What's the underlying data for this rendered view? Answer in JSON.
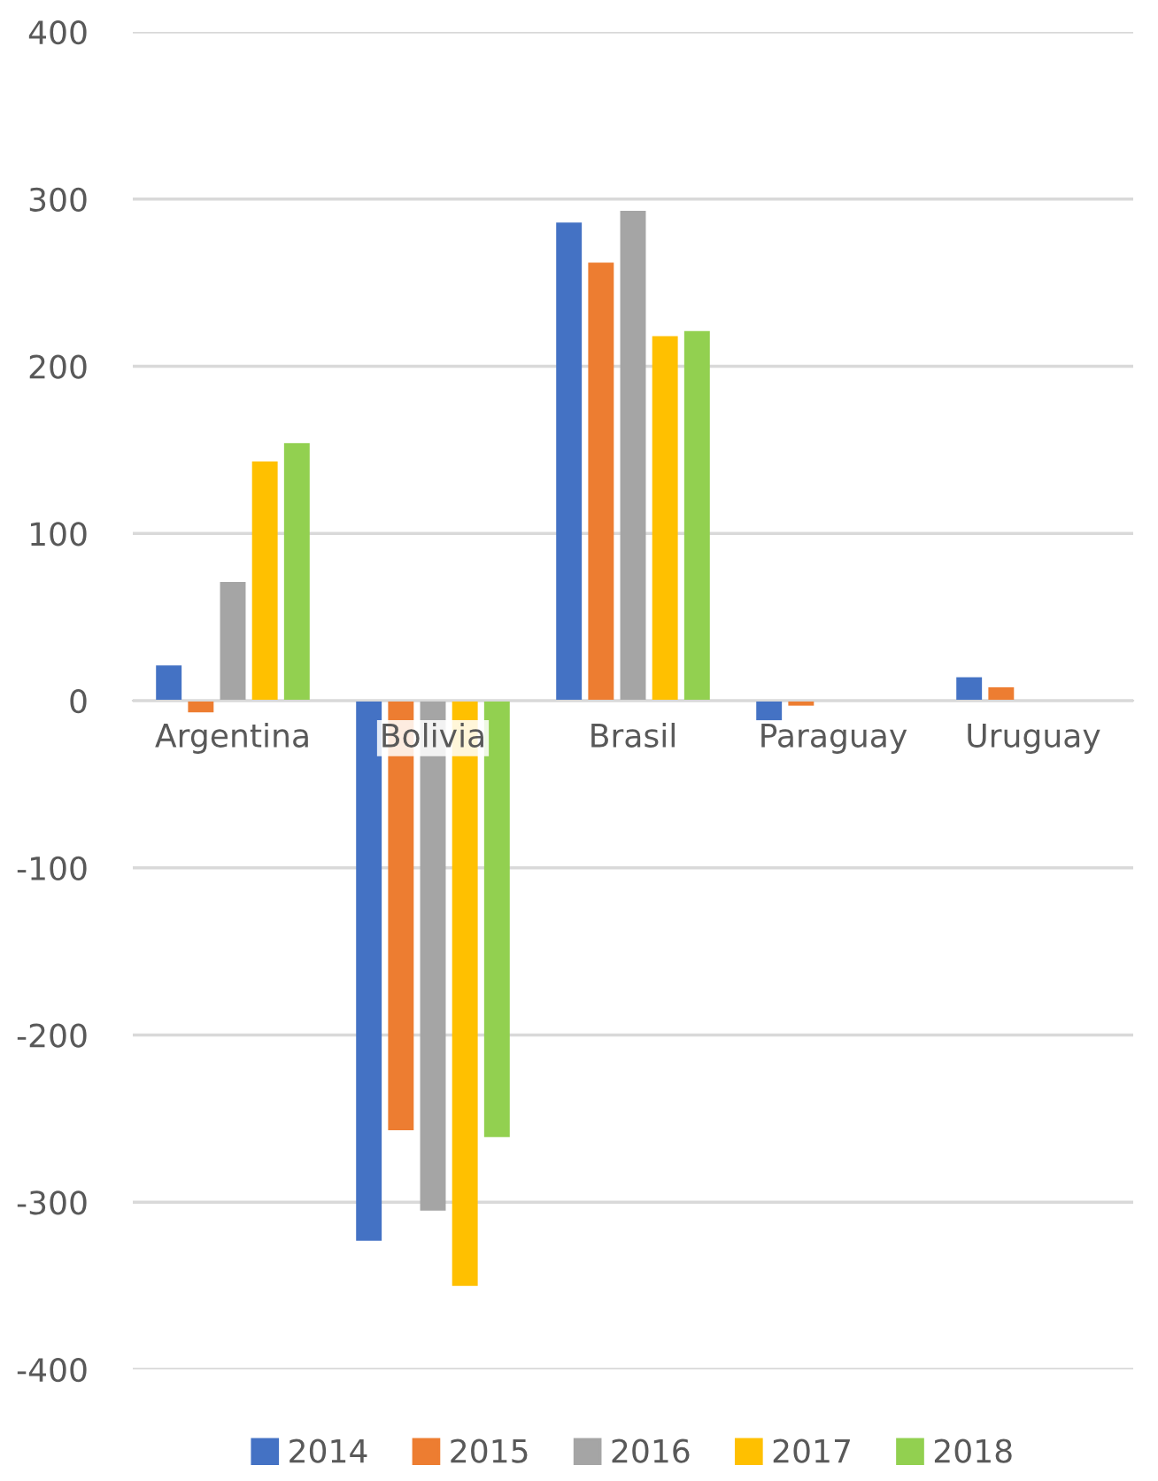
{
  "chart_data": {
    "type": "bar",
    "categories": [
      "Argentina",
      "Bolivia",
      "Brasil",
      "Paraguay",
      "Uruguay"
    ],
    "series": [
      {
        "name": "2014",
        "color": "#4472c4",
        "values": [
          21,
          -323,
          286,
          -12,
          14
        ]
      },
      {
        "name": "2015",
        "color": "#ed7d31",
        "values": [
          -7,
          -257,
          262,
          -3,
          8
        ]
      },
      {
        "name": "2016",
        "color": "#a5a5a5",
        "values": [
          71,
          -305,
          293,
          0,
          0
        ]
      },
      {
        "name": "2017",
        "color": "#ffc000",
        "values": [
          143,
          -350,
          218,
          0,
          0
        ]
      },
      {
        "name": "2018",
        "color": "#92d050",
        "values": [
          154,
          -261,
          221,
          0,
          0
        ]
      }
    ],
    "ylim": [
      -400,
      400
    ],
    "yticks": [
      -400,
      -300,
      -200,
      -100,
      0,
      100,
      200,
      300,
      400
    ],
    "grid": "y",
    "legend": "bottom"
  }
}
